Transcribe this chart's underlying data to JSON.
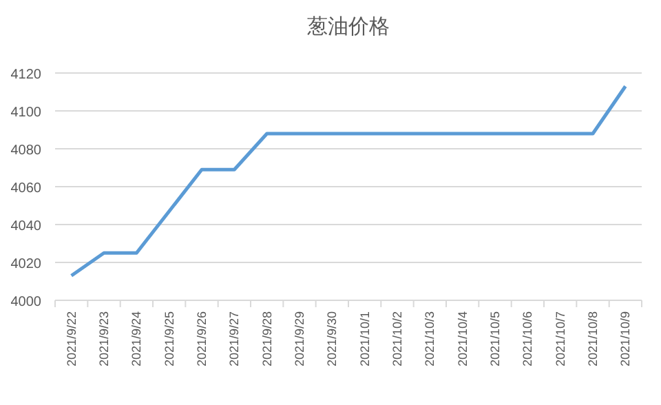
{
  "chart_data": {
    "type": "line",
    "title": "葱油价格",
    "categories": [
      "2021/9/22",
      "2021/9/23",
      "2021/9/24",
      "2021/9/25",
      "2021/9/26",
      "2021/9/27",
      "2021/9/28",
      "2021/9/29",
      "2021/9/30",
      "2021/10/1",
      "2021/10/2",
      "2021/10/3",
      "2021/10/4",
      "2021/10/5",
      "2021/10/6",
      "2021/10/7",
      "2021/10/8",
      "2021/10/9"
    ],
    "series": [
      {
        "color": "#5b9bd5",
        "values": [
          4013,
          4025,
          4025,
          4047,
          4069,
          4069,
          4088,
          4088,
          4088,
          4088,
          4088,
          4088,
          4088,
          4088,
          4088,
          4088,
          4088,
          4113
        ]
      }
    ],
    "ylim": [
      4000,
      4120
    ],
    "yticks": [
      4000,
      4020,
      4040,
      4060,
      4080,
      4100,
      4120
    ],
    "grid": "y",
    "marker": "none",
    "line_style": "solid"
  }
}
